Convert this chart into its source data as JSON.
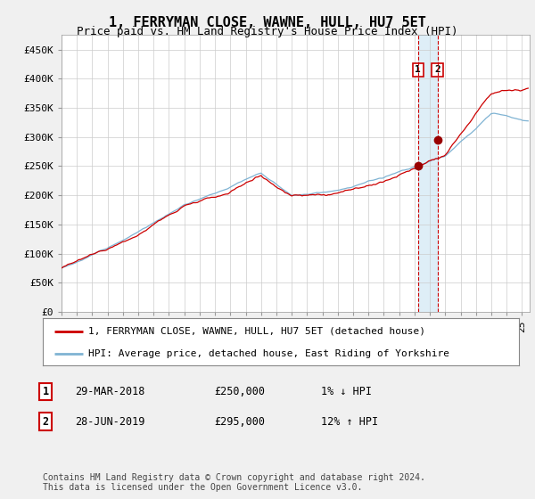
{
  "title": "1, FERRYMAN CLOSE, WAWNE, HULL, HU7 5ET",
  "subtitle": "Price paid vs. HM Land Registry's House Price Index (HPI)",
  "ylabel_ticks": [
    "£0",
    "£50K",
    "£100K",
    "£150K",
    "£200K",
    "£250K",
    "£300K",
    "£350K",
    "£400K",
    "£450K"
  ],
  "ytick_values": [
    0,
    50000,
    100000,
    150000,
    200000,
    250000,
    300000,
    350000,
    400000,
    450000
  ],
  "ylim": [
    0,
    475000
  ],
  "xlim_start": 1995.0,
  "xlim_end": 2025.5,
  "sale1": {
    "date_num": 2018.23,
    "price": 250000,
    "label": "1"
  },
  "sale2": {
    "date_num": 2019.49,
    "price": 295000,
    "label": "2"
  },
  "legend_line1": "1, FERRYMAN CLOSE, WAWNE, HULL, HU7 5ET (detached house)",
  "legend_line2": "HPI: Average price, detached house, East Riding of Yorkshire",
  "table_row1": [
    "1",
    "29-MAR-2018",
    "£250,000",
    "1% ↓ HPI"
  ],
  "table_row2": [
    "2",
    "28-JUN-2019",
    "£295,000",
    "12% ↑ HPI"
  ],
  "footnote": "Contains HM Land Registry data © Crown copyright and database right 2024.\nThis data is licensed under the Open Government Licence v3.0.",
  "line_color_red": "#cc0000",
  "line_color_blue": "#7fb3d3",
  "dot_color_red": "#990000",
  "bg_color": "#f0f0f0",
  "plot_bg": "#ffffff",
  "grid_color": "#cccccc",
  "vline_color": "#cc0000",
  "shade_color": "#d0e8f5",
  "title_fontsize": 11,
  "subtitle_fontsize": 9,
  "tick_fontsize": 8,
  "legend_fontsize": 8,
  "table_fontsize": 8.5,
  "footnote_fontsize": 7
}
